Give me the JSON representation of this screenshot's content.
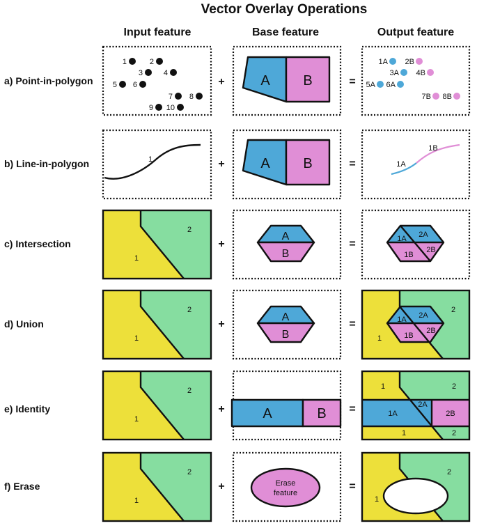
{
  "title": "Vector Overlay Operations",
  "columns": {
    "input": "Input feature",
    "base": "Base feature",
    "output": "Output feature"
  },
  "operators": {
    "plus": "+",
    "equals": "="
  },
  "rows": [
    {
      "label": "a) Point-in-polygon"
    },
    {
      "label": "b) Line-in-polygon"
    },
    {
      "label": "c) Intersection"
    },
    {
      "label": "d) Union"
    },
    {
      "label": "e) Identity"
    },
    {
      "label": "f) Erase"
    }
  ],
  "colors": {
    "blue": "#4ea8d8",
    "pink": "#e08ed6",
    "yellow": "#ede03a",
    "green": "#86dda0",
    "black": "#111111",
    "white": "#ffffff"
  },
  "points_input": [
    "1",
    "2",
    "3",
    "4",
    "5",
    "6",
    "7",
    "8",
    "9",
    "10"
  ],
  "points_output": [
    "1A",
    "2B",
    "3A",
    "4B",
    "5A",
    "6A",
    "7B",
    "8B"
  ],
  "base_labels": {
    "a": "A",
    "b": "B"
  },
  "line_labels": {
    "input": "1",
    "out_a": "1A",
    "out_b": "1B"
  },
  "input_zone_labels": {
    "one": "1",
    "two": "2"
  },
  "hex_output_labels": {
    "one_a": "1A",
    "two_a": "2A",
    "one_b": "1B",
    "two_b": "2B"
  },
  "union_extra": {
    "one": "1",
    "two": "2"
  },
  "identity_output": {
    "one_top": "1",
    "two_top": "2",
    "one_a": "1A",
    "two_a": "2A",
    "two_b": "2B",
    "one_bottom": "1",
    "two_bottom": "2"
  },
  "erase": {
    "feature_line1": "Erase",
    "feature_line2": "feature",
    "out_one": "1",
    "out_two": "2"
  }
}
